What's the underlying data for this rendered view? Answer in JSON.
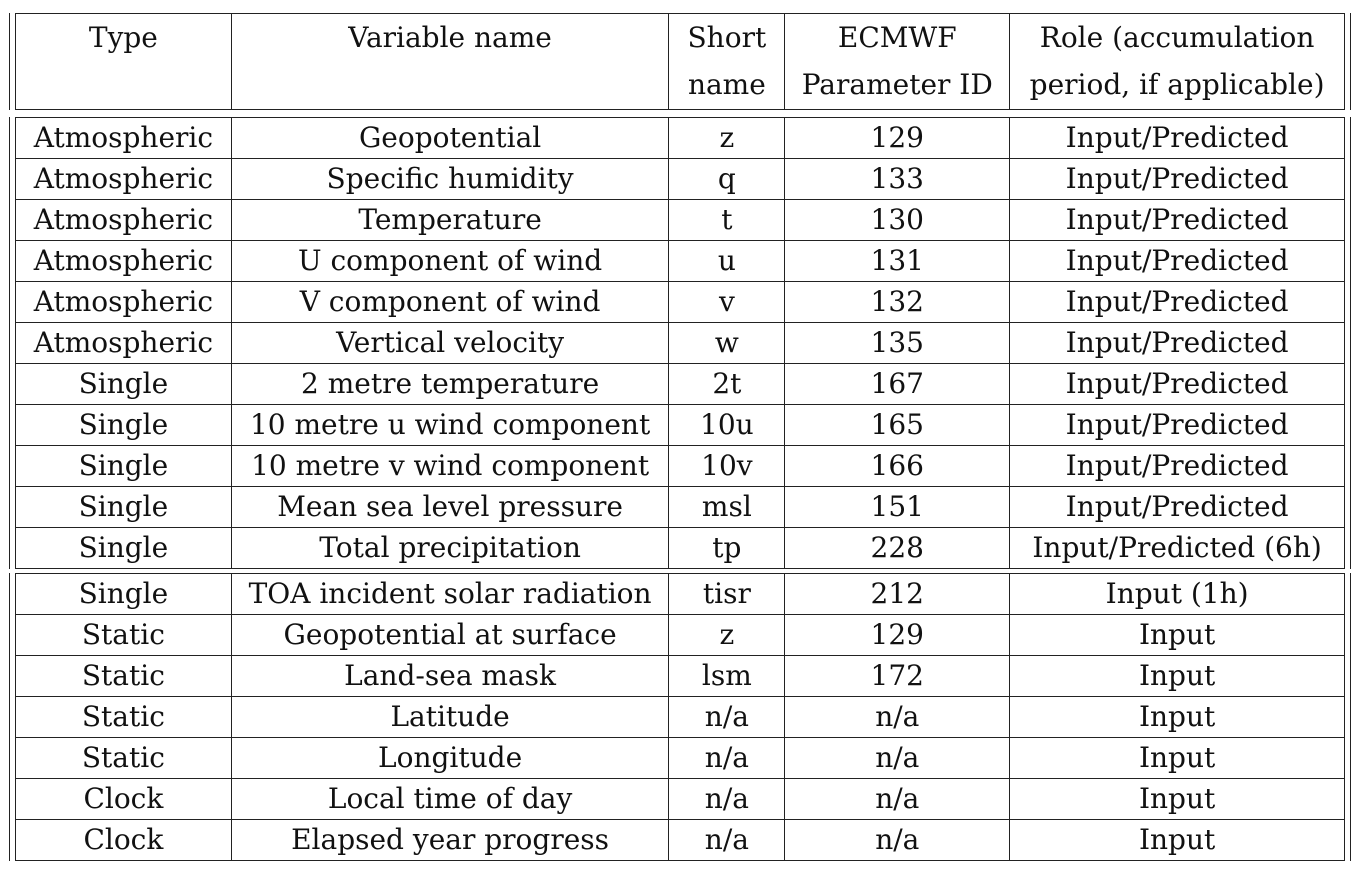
{
  "table": {
    "headers": [
      "Type",
      "Variable name",
      "Short name",
      "ECMWF Parameter ID",
      "Role (accumulation period, if applicable)"
    ],
    "header_lines": [
      [
        "Type",
        ""
      ],
      [
        "Variable name",
        ""
      ],
      [
        "Short",
        "name"
      ],
      [
        "ECMWF",
        "Parameter ID"
      ],
      [
        "Role (accumulation",
        "period, if applicable)"
      ]
    ],
    "block1": [
      [
        "Atmospheric",
        "Geopotential",
        "z",
        "129",
        "Input/Predicted"
      ],
      [
        "Atmospheric",
        "Specific humidity",
        "q",
        "133",
        "Input/Predicted"
      ],
      [
        "Atmospheric",
        "Temperature",
        "t",
        "130",
        "Input/Predicted"
      ],
      [
        "Atmospheric",
        "U component of wind",
        "u",
        "131",
        "Input/Predicted"
      ],
      [
        "Atmospheric",
        "V component of wind",
        "v",
        "132",
        "Input/Predicted"
      ],
      [
        "Atmospheric",
        "Vertical velocity",
        "w",
        "135",
        "Input/Predicted"
      ],
      [
        "Single",
        "2 metre temperature",
        "2t",
        "167",
        "Input/Predicted"
      ],
      [
        "Single",
        "10 metre u wind component",
        "10u",
        "165",
        "Input/Predicted"
      ],
      [
        "Single",
        "10 metre v wind component",
        "10v",
        "166",
        "Input/Predicted"
      ],
      [
        "Single",
        "Mean sea level pressure",
        "msl",
        "151",
        "Input/Predicted"
      ],
      [
        "Single",
        "Total precipitation",
        "tp",
        "228",
        "Input/Predicted (6h)"
      ]
    ],
    "block2": [
      [
        "Single",
        "TOA incident solar radiation",
        "tisr",
        "212",
        "Input (1h)"
      ],
      [
        "Static",
        "Geopotential at surface",
        "z",
        "129",
        "Input"
      ],
      [
        "Static",
        "Land-sea mask",
        "lsm",
        "172",
        "Input"
      ],
      [
        "Static",
        "Latitude",
        "n/a",
        "n/a",
        "Input"
      ],
      [
        "Static",
        "Longitude",
        "n/a",
        "n/a",
        "Input"
      ],
      [
        "Clock",
        "Local time of day",
        "n/a",
        "n/a",
        "Input"
      ],
      [
        "Clock",
        "Elapsed year progress",
        "n/a",
        "n/a",
        "Input"
      ]
    ]
  }
}
